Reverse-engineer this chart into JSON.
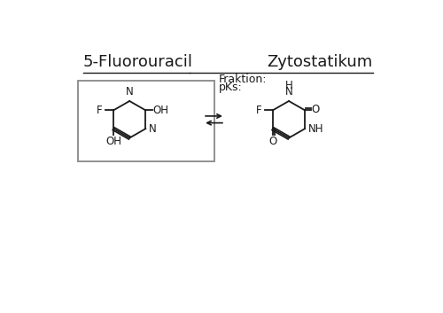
{
  "title_left": "5-Fluorouracil",
  "title_right": "Zytostatikum",
  "fraktion_label": "Fraktion:",
  "pks_label": "pKs:",
  "bg_color": "#ffffff",
  "text_color": "#1a1a1a",
  "box_color": "#888888",
  "title_fontsize": 13,
  "label_fontsize": 9,
  "struct_fontsize": 8.5
}
